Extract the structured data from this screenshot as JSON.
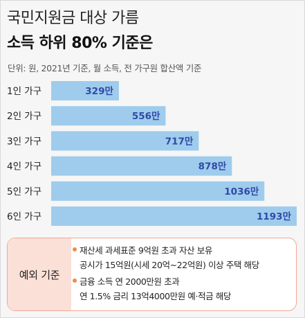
{
  "header": {
    "title_line1": "국민지원금 대상 가름",
    "title_line2": "소득 하위 80% 기준은",
    "unit_note": "단위: 원, 2021년 기준, 월 소득, 전 가구원 합산액 기준"
  },
  "chart_data": {
    "type": "bar",
    "orientation": "horizontal",
    "categories": [
      "1인 가구",
      "2인 가구",
      "3인 가구",
      "4인 가구",
      "5인 가구",
      "6인 가구"
    ],
    "values": [
      329,
      556,
      717,
      878,
      1036,
      1193
    ],
    "value_labels": [
      "329만",
      "556만",
      "717만",
      "878만",
      "1036만",
      "1193만"
    ],
    "title": "소득 하위 80% 기준은",
    "xlabel": "",
    "ylabel": "",
    "unit": "만 원",
    "xlim": [
      0,
      1193
    ],
    "grid": false,
    "legend": "none",
    "bar_color": "#9fccec",
    "label_color": "#2e4aa8"
  },
  "exception": {
    "label": "예외 기준",
    "items": [
      {
        "line1": "재산세 과세표준 9억원 초과 자산 보유",
        "line2": "공시가 15억원(시세 20억~22억원) 이상 주택 해당"
      },
      {
        "line1": "금융 소득 연 2000만원 초과",
        "line2": "연 1.5% 금리 13억4000만원 예·적금 해당"
      }
    ],
    "bullet_color": "#f08a4b",
    "border_color": "#f3a594",
    "label_bg": "#fbe0d8"
  }
}
